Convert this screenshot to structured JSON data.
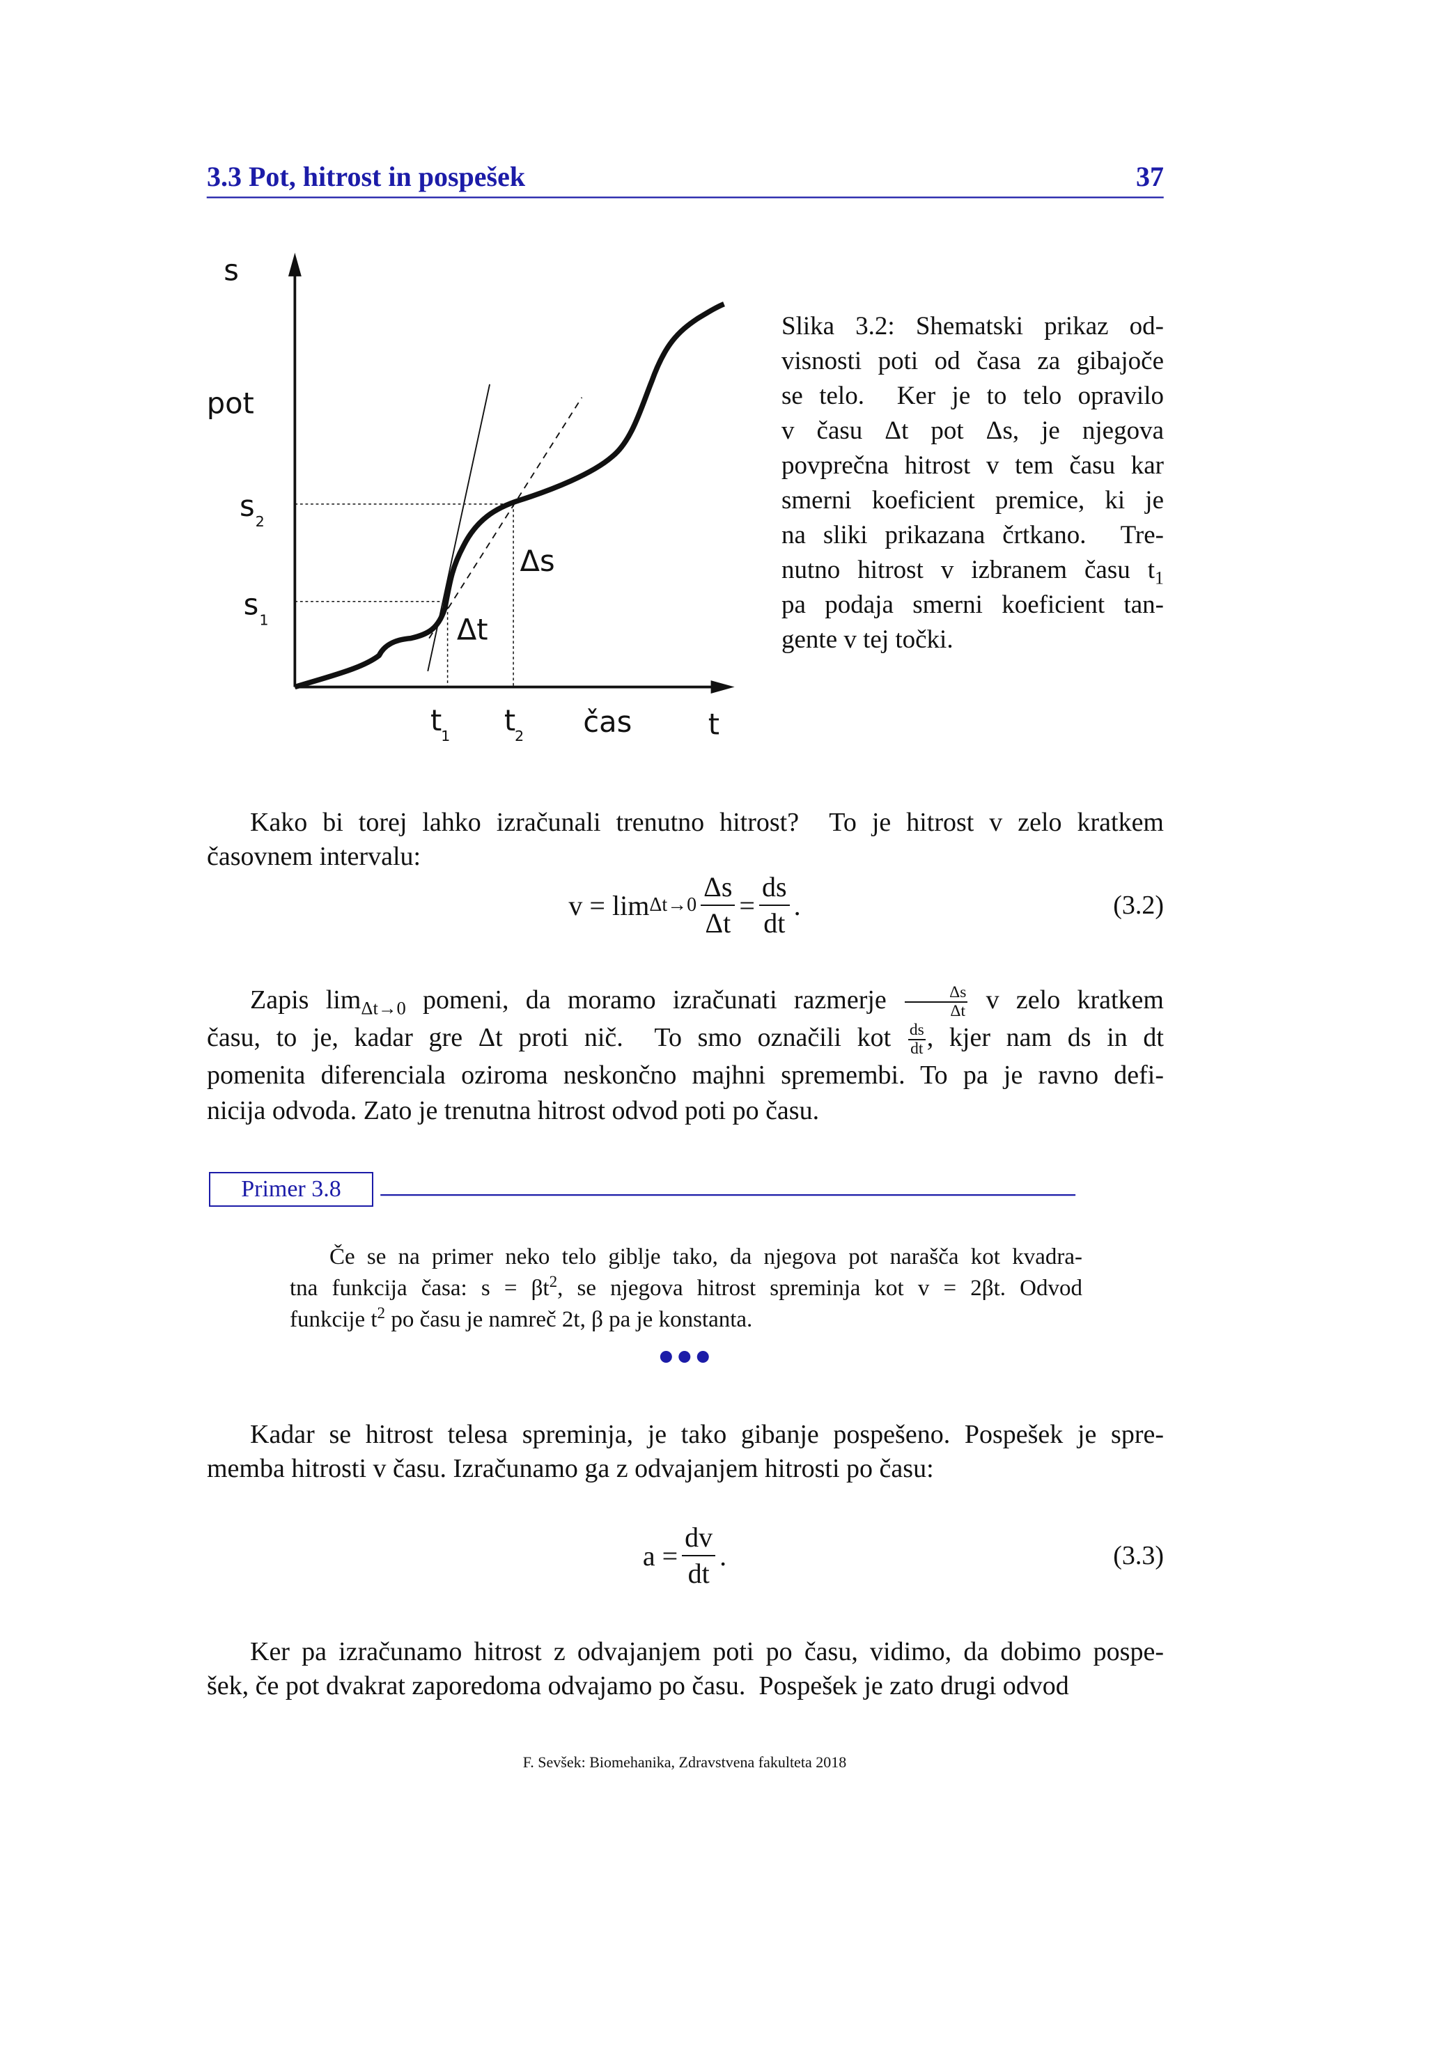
{
  "header": {
    "section": "3.3 Pot, hitrost in pospešek",
    "page": "37"
  },
  "figure": {
    "y_axis": "s",
    "y_label": "pot",
    "s2": {
      "text": "s",
      "sub": "2"
    },
    "s1": {
      "text": "s",
      "sub": "1"
    },
    "ds": "Δs",
    "dt": "Δt",
    "t1": {
      "text": "t",
      "sub": "1"
    },
    "t2": {
      "text": "t",
      "sub": "2"
    },
    "x_label": "čas",
    "x_axis": "t"
  },
  "caption": [
    [
      "Slika 3.2: Shematski prikaz od-"
    ],
    [
      "visnosti poti od časa za gibajoče"
    ],
    [
      "se telo.  Ker je to telo opravilo"
    ],
    [
      "v času Δt pot Δs, je njegova"
    ],
    [
      "povprečna hitrost v tem času kar"
    ],
    [
      "smerni koeficient premice, ki je"
    ],
    [
      "na sliki prikazana črtkano.  Tre-"
    ],
    [
      "nutno hitrost v izbranem času t",
      {
        "sub": "1"
      }
    ],
    [
      "pa podaja smerni koeficient tan-"
    ],
    [
      "gente v tej točki."
    ]
  ],
  "p1": [
    [
      "Kako bi torej lahko izračunali trenutno hitrost?  To je hitrost v zelo kratkem"
    ],
    [
      "časovnem intervalu:"
    ]
  ],
  "eq1": {
    "parts": [
      [
        "v = lim",
        {
          "sub": "Δt→0"
        },
        {
          "num": "Δs",
          "den": "Δt"
        },
        " = ",
        {
          "num": "ds",
          "den": "dt"
        },
        "."
      ]
    ],
    "number": "(3.2)"
  },
  "p2": [
    [
      "Zapis lim",
      {
        "sub": "Δt→0"
      },
      " pomeni, da moramo izračunati razmerje ",
      {
        "num": "Δs",
        "den": "Δt"
      },
      " v zelo kratkem"
    ],
    [
      "času, to je, kadar gre Δt proti nič.  To smo označili kot ",
      {
        "num": "ds",
        "den": "dt"
      },
      ", kjer nam ds in dt"
    ],
    [
      "pomenita diferenciala oziroma neskončno majhni spremembi. To pa je ravno defi-"
    ],
    [
      "nicija odvoda. Zato je trenutna hitrost odvod poti po času."
    ]
  ],
  "primer": "Primer 3.8",
  "example": [
    [
      "Če se na primer neko telo giblje tako, da njegova pot narašča kot kvadra-"
    ],
    [
      "tna funkcija časa: s = βt",
      {
        "sup": "2"
      },
      ", se njegova hitrost spreminja kot v = 2βt. Odvod"
    ],
    [
      "funkcije t",
      {
        "sup": "2"
      },
      " po času je namreč 2t, β pa je konstanta."
    ]
  ],
  "p3": [
    [
      "Kadar se hitrost telesa spreminja, je tako gibanje pospešeno. Pospešek je spre-"
    ],
    [
      "memba hitrosti v času. Izračunamo ga z odvajanjem hitrosti po času:"
    ]
  ],
  "eq2": {
    "parts": [
      [
        "a = ",
        {
          "num": "dv",
          "den": "dt"
        },
        "."
      ]
    ],
    "number": "(3.3)"
  },
  "p4": [
    [
      "Ker pa izračunamo hitrost z odvajanjem poti po času, vidimo, da dobimo pospe-"
    ],
    [
      "šek, če pot dvakrat zaporedoma odvajamo po času.  Pospešek je zato drugi odvod"
    ]
  ],
  "footer": "F. Sevšek: Biomehanika, Zdravstvena fakulteta 2018"
}
